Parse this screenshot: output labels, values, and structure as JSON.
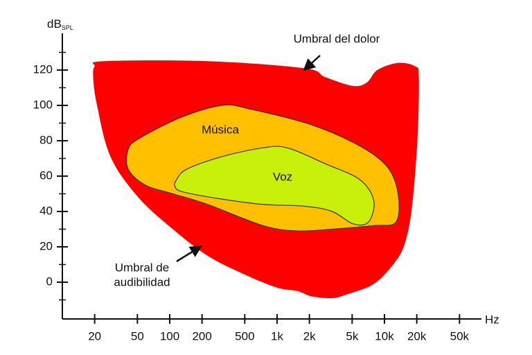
{
  "chart_data": {
    "type": "region",
    "ylabel": "dB",
    "ylabel_sub": "SPL",
    "xlabel": "Hz",
    "xscale": "log",
    "xlim": [
      10,
      80000
    ],
    "xticks": [
      20,
      50,
      100,
      200,
      500,
      {
        "value": 1000,
        "label": "1k"
      },
      {
        "value": 2000,
        "label": "2k"
      },
      {
        "value": 5000,
        "label": "5k"
      },
      {
        "value": 10000,
        "label": "10k"
      },
      {
        "value": 20000,
        "label": "20k"
      },
      {
        "value": 50000,
        "label": "50k"
      }
    ],
    "ylim": [
      -20,
      140
    ],
    "yticks": [
      0,
      20,
      40,
      60,
      80,
      100,
      120
    ],
    "yminorticks": [
      -10,
      10,
      30,
      50,
      70,
      90,
      110,
      130
    ],
    "series": [
      {
        "color": "#ff0000",
        "x": [
          20,
          24.3,
          225,
          1800,
          2810,
          5100,
          6870,
          8590,
          13400,
          19400,
          20900,
          20300,
          18000,
          15500,
          12400,
          7960,
          4400,
          3260,
          2090,
          1550,
          993,
          473,
          225,
          107,
          51,
          28.1,
          20.9,
          19.4
        ],
        "values": [
          122,
          125,
          125,
          121,
          116,
          111,
          113,
          120,
          124,
          122,
          116,
          81,
          42,
          22,
          11,
          -1,
          -7,
          -9,
          -8,
          -5,
          -3,
          5,
          15,
          30,
          48,
          71,
          101,
          116
        ]
      },
      {
        "name": "Música",
        "color": "#ffc000",
        "x": [
          41,
          51,
          125,
          306,
          552,
          2090,
          5900,
          10700,
          13400,
          12800,
          7960,
          3260,
          1550,
          740,
          225,
          107,
          59,
          41
        ],
        "values": [
          75,
          81,
          93,
          100,
          98,
          89,
          77,
          65,
          50,
          34,
          32,
          30,
          29,
          32,
          44,
          50,
          55,
          64
        ]
      },
      {
        "name": "Voz",
        "color": "#c8f00a",
        "x": [
          116,
          145,
          306,
          740,
          1240,
          2810,
          5900,
          7960,
          7100,
          5100,
          3260,
          1800,
          740,
          306,
          134,
          112
        ],
        "values": [
          58,
          64,
          71,
          76,
          76,
          67,
          58,
          46,
          34,
          33,
          40,
          43,
          44,
          47,
          51,
          54
        ]
      }
    ],
    "annotations": [
      {
        "lines": [
          "Umbral del dolor"
        ]
      },
      {
        "lines": [
          "Umbral de",
          "audibilidad"
        ]
      }
    ]
  }
}
